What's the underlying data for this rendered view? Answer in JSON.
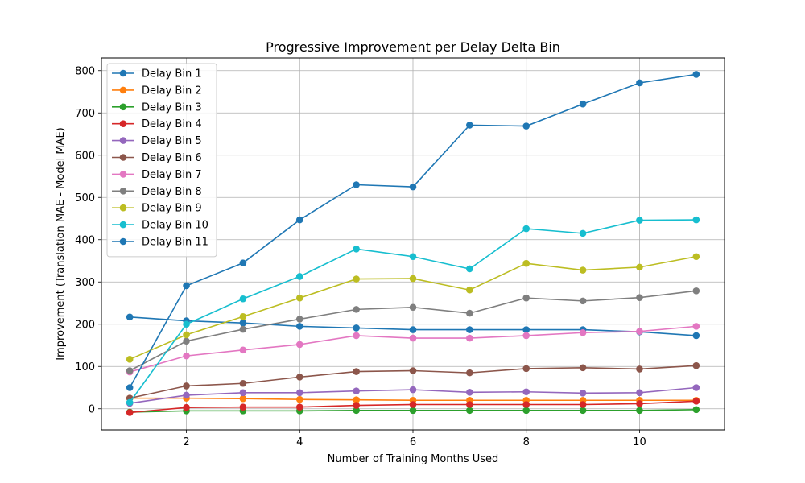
{
  "chart_data": {
    "type": "line",
    "title": "Progressive Improvement per Delay Delta Bin",
    "xlabel": "Number of Training Months Used",
    "ylabel": "Improvement (Translation MAE - Model MAE)",
    "xlim": [
      0.5,
      11.5
    ],
    "ylim": [
      -50,
      830
    ],
    "xticks": [
      2,
      4,
      6,
      8,
      10
    ],
    "yticks": [
      0,
      100,
      200,
      300,
      400,
      500,
      600,
      700,
      800
    ],
    "grid": true,
    "legend_position": "top-left",
    "x": [
      1,
      2,
      3,
      4,
      5,
      6,
      7,
      8,
      9,
      10,
      11
    ],
    "series": [
      {
        "name": "Delay Bin 1",
        "color": "#1f77b4",
        "values": [
          217,
          208,
          203,
          195,
          191,
          187,
          187,
          187,
          187,
          182,
          173
        ]
      },
      {
        "name": "Delay Bin 2",
        "color": "#ff7f0e",
        "values": [
          25,
          25,
          24,
          22,
          21,
          20,
          20,
          20,
          20,
          20,
          20
        ]
      },
      {
        "name": "Delay Bin 3",
        "color": "#2ca02c",
        "values": [
          -8,
          -5,
          -5,
          -5,
          -4,
          -4,
          -4,
          -4,
          -4,
          -4,
          -2
        ]
      },
      {
        "name": "Delay Bin 4",
        "color": "#d62728",
        "values": [
          -9,
          3,
          4,
          4,
          8,
          10,
          10,
          10,
          10,
          12,
          18
        ]
      },
      {
        "name": "Delay Bin 5",
        "color": "#9467bd",
        "values": [
          13,
          32,
          38,
          38,
          42,
          45,
          39,
          40,
          37,
          38,
          50
        ]
      },
      {
        "name": "Delay Bin 6",
        "color": "#8c564b",
        "values": [
          25,
          54,
          60,
          75,
          88,
          90,
          85,
          95,
          97,
          94,
          102
        ]
      },
      {
        "name": "Delay Bin 7",
        "color": "#e377c2",
        "values": [
          87,
          125,
          139,
          152,
          173,
          167,
          167,
          173,
          180,
          183,
          195
        ]
      },
      {
        "name": "Delay Bin 8",
        "color": "#7f7f7f",
        "values": [
          90,
          160,
          188,
          212,
          235,
          240,
          226,
          262,
          255,
          263,
          279
        ]
      },
      {
        "name": "Delay Bin 9",
        "color": "#bcbd22",
        "values": [
          117,
          175,
          218,
          262,
          307,
          308,
          281,
          344,
          328,
          335,
          360
        ]
      },
      {
        "name": "Delay Bin 10",
        "color": "#17becf",
        "values": [
          15,
          200,
          260,
          313,
          378,
          360,
          331,
          426,
          415,
          446,
          447
        ]
      },
      {
        "name": "Delay Bin 11",
        "color": "#1f77b4",
        "values": [
          50,
          291,
          345,
          447,
          530,
          525,
          671,
          669,
          721,
          771,
          791
        ]
      }
    ]
  }
}
